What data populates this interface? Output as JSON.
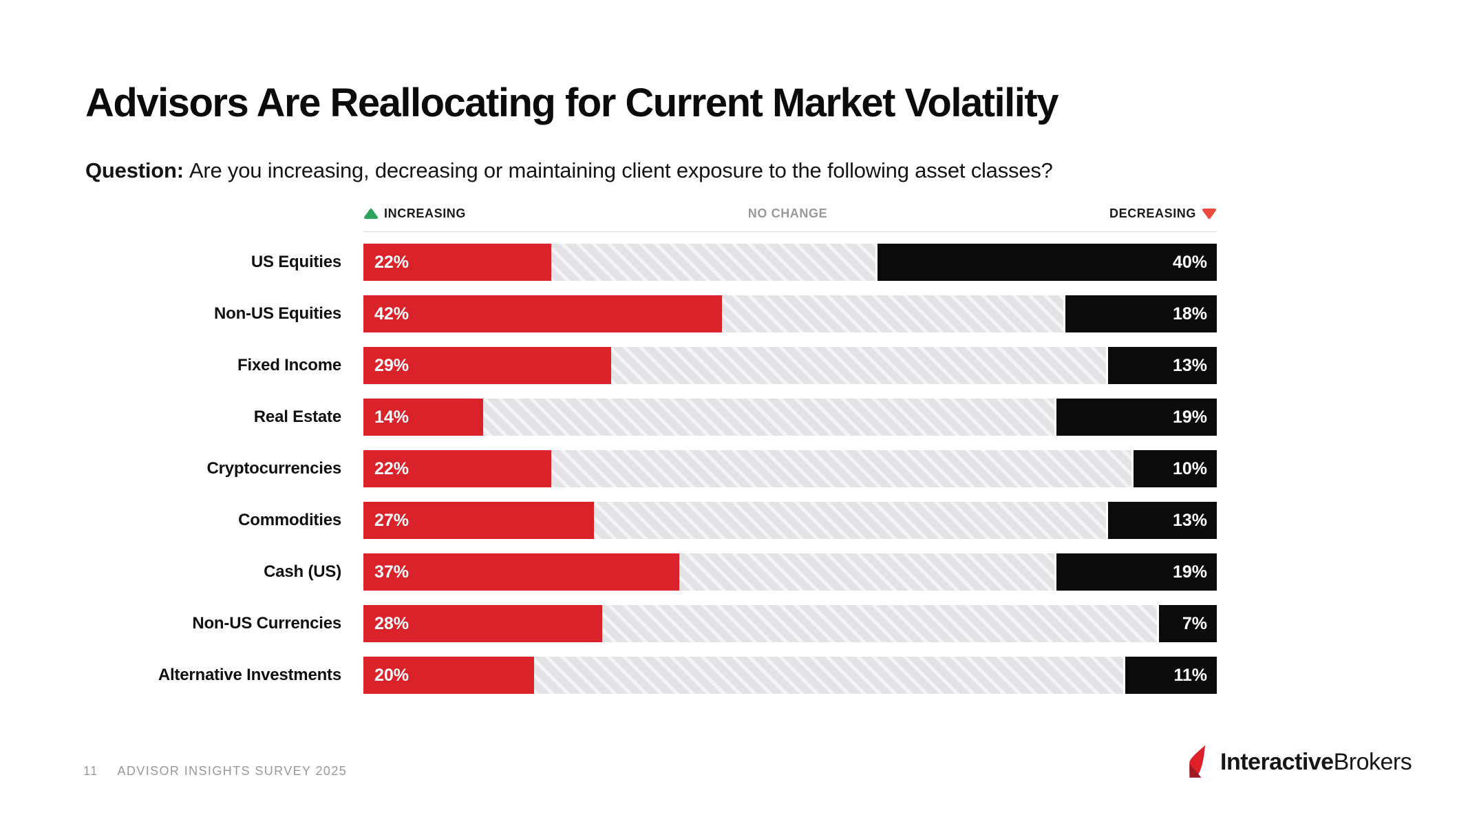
{
  "slide": {
    "title": "Advisors Are Reallocating for Current Market Volatility",
    "question_label": "Question:",
    "question_text": "Are you increasing, decreasing or maintaining client exposure to the following asset classes?",
    "footer": {
      "page_number": "11",
      "footer_text": "ADVISOR INSIGHTS SURVEY 2025"
    },
    "logo": {
      "brand_bold": "Interactive",
      "brand_regular": "Brokers"
    }
  },
  "legend": {
    "increasing": "INCREASING",
    "no_change": "NO CHANGE",
    "decreasing": "DECREASING"
  },
  "colors": {
    "increase": "#d9222a",
    "decrease": "#0b0b0b",
    "no_change_bg": "#e3e3e6",
    "hatch_stripe": "#f4f4f7",
    "legend_line": "#dcdcdc",
    "legend_up": "#2ea45b",
    "legend_down": "#e9493f",
    "logo_red": "#df2028",
    "logo_dark_red": "#9e1b21",
    "muted": "#97999b"
  },
  "chart_data": {
    "type": "bar",
    "orientation": "horizontal",
    "stacked": true,
    "value_suffix": "%",
    "axis_range": [
      0,
      100
    ],
    "grid": false,
    "legend_position": "top",
    "categories": [
      "US Equities",
      "Non-US Equities",
      "Fixed Income",
      "Real Estate",
      "Cryptocurrencies",
      "Commodities",
      "Cash (US)",
      "Non-US Currencies",
      "Alternative Investments"
    ],
    "series": [
      {
        "name": "Increasing",
        "values": [
          22,
          42,
          29,
          14,
          22,
          27,
          37,
          28,
          20
        ],
        "labels": [
          "22%",
          "42%",
          "29%",
          "14%",
          "22%",
          "27%",
          "37%",
          "28%",
          "20%"
        ]
      },
      {
        "name": "No change",
        "values": [
          38,
          40,
          58,
          67,
          68,
          60,
          44,
          65,
          69
        ],
        "labels": [
          "",
          "",
          "",
          "",
          "",
          "",
          "",
          "",
          ""
        ]
      },
      {
        "name": "Decreasing",
        "values": [
          40,
          18,
          13,
          19,
          10,
          13,
          19,
          7,
          11
        ],
        "labels": [
          "40%",
          "18%",
          "13%",
          "19%",
          "10%",
          "13%",
          "19%",
          "7%",
          "11%"
        ]
      }
    ]
  }
}
